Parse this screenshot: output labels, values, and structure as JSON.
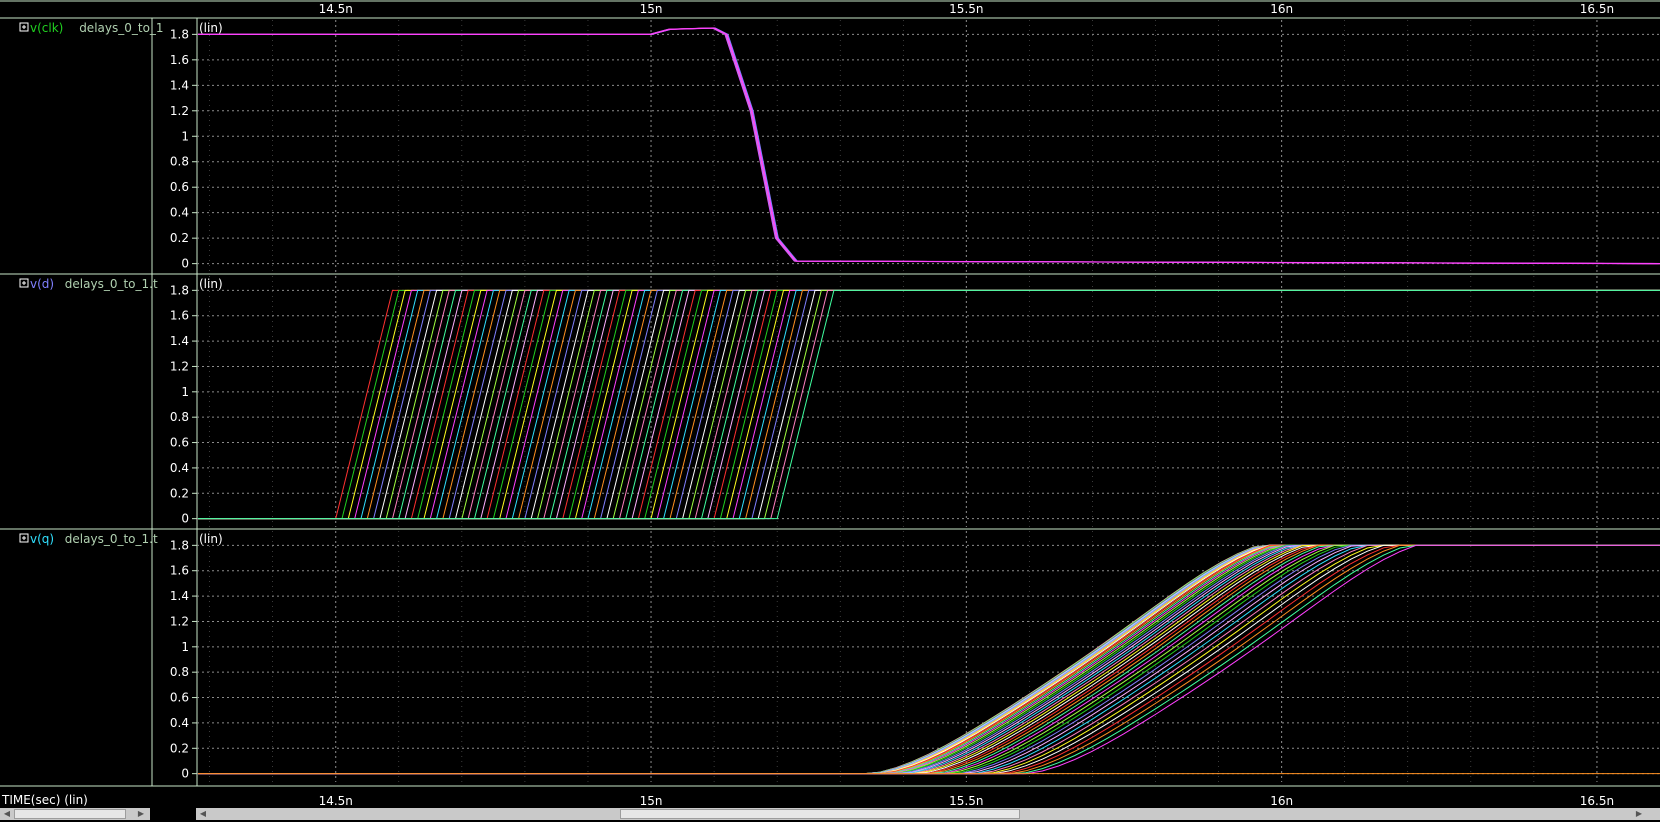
{
  "time_label": "TIME(sec) (lin)",
  "colors": {
    "background": "#000000",
    "grid": "#8c8c8c",
    "axis": "#c8e6c8",
    "text": "#ffffff",
    "palette": [
      "#ff3030",
      "#20d020",
      "#ffff20",
      "#ff40ff",
      "#30e0ff",
      "#ff9020",
      "#8080ff",
      "#ffffff",
      "#a0ff40",
      "#ff80c0",
      "#40ffa0",
      "#ffb0ff"
    ]
  },
  "chart_data": [
    {
      "type": "line",
      "panel": "clk",
      "signal": "v(clk)",
      "signal_color": "#20d020",
      "legend": "delays_0_to_1",
      "scale_label": "(lin)",
      "xlim": [
        1.428e-08,
        1.66e-08
      ],
      "ylim": [
        -0.05,
        1.85
      ],
      "yticks": [
        "0",
        "0.2",
        "0.4",
        "0.6",
        "0.8",
        "1",
        "1.2",
        "1.4",
        "1.6",
        "1.8"
      ],
      "xticks": [
        "14.5n",
        "15n",
        "15.5n",
        "16n",
        "16.5n"
      ],
      "series": [
        {
          "color": "#ff40ff",
          "x": [
            1.428e-08,
            1.5e-08,
            1.503e-08,
            1.51e-08,
            1.512e-08,
            1.516e-08,
            1.52e-08,
            1.523e-08,
            1.66e-08
          ],
          "y": [
            1.8,
            1.8,
            1.84,
            1.85,
            1.8,
            1.2,
            0.2,
            0.02,
            0.0
          ]
        }
      ]
    },
    {
      "type": "line",
      "panel": "d",
      "signal": "v(d)",
      "signal_color": "#8080ff",
      "legend": "delays_0_to_1.t",
      "scale_label": "(lin)",
      "xlim": [
        1.428e-08,
        1.66e-08
      ],
      "ylim": [
        -0.05,
        1.85
      ],
      "yticks": [
        "0",
        "0.2",
        "0.4",
        "0.6",
        "0.8",
        "1",
        "1.2",
        "1.4",
        "1.6",
        "1.8"
      ],
      "xticks": [
        "14.5n",
        "15n",
        "15.5n",
        "16n",
        "16.5n"
      ],
      "sweep": {
        "count": 71,
        "rise_start_first": 1.45e-08,
        "rise_start_last": 1.52e-08,
        "rise_time": 9e-11,
        "low": 0.0,
        "high": 1.8
      }
    },
    {
      "type": "line",
      "panel": "q",
      "signal": "v(q)",
      "signal_color": "#30e0ff",
      "legend": "delays_0_to_1.t",
      "scale_label": "(lin)",
      "xlim": [
        1.428e-08,
        1.66e-08
      ],
      "ylim": [
        -0.05,
        1.85
      ],
      "yticks": [
        "0",
        "0.2",
        "0.4",
        "0.6",
        "0.8",
        "1",
        "1.2",
        "1.4",
        "1.6",
        "1.8"
      ],
      "xticks": [
        "14.5n",
        "15n",
        "15.5n",
        "16n",
        "16.5n"
      ],
      "sweep": {
        "count": 40,
        "start_first": 1.535e-08,
        "start_last": 1.56e-08,
        "end_first": 1.6e-08,
        "end_last": 1.625e-08,
        "low": 0.0,
        "high": 1.8,
        "flat_zero": true
      }
    }
  ]
}
